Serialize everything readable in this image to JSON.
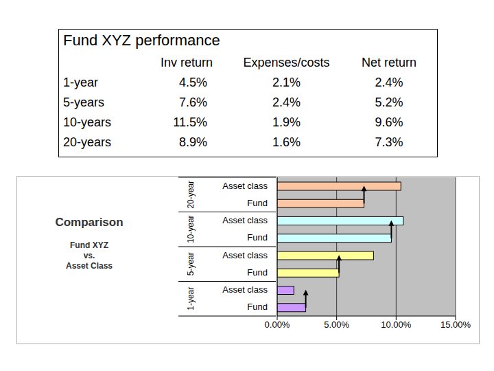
{
  "table": {
    "title": "Fund XYZ performance",
    "columns": [
      "Inv return",
      "Expenses/costs",
      "Net return"
    ],
    "rows": [
      {
        "label": "1-year",
        "cells": [
          "4.5%",
          "2.1%",
          "2.4%"
        ]
      },
      {
        "label": "5-years",
        "cells": [
          "7.6%",
          "2.4%",
          "5.2%"
        ]
      },
      {
        "label": "10-years",
        "cells": [
          "11.5%",
          "1.9%",
          "9.6%"
        ]
      },
      {
        "label": "20-years",
        "cells": [
          "8.9%",
          "1.6%",
          "7.3%"
        ]
      }
    ]
  },
  "chart_data": {
    "type": "bar",
    "orientation": "horizontal",
    "title": "Comparison",
    "subtitle": [
      "Fund XYZ",
      "vs.",
      "Asset Class"
    ],
    "groups": [
      "20-year",
      "10-year",
      "5-year",
      "1-year"
    ],
    "categories": [
      "Asset class",
      "Fund",
      "Asset class",
      "Fund",
      "Asset class",
      "Fund",
      "Asset class",
      "Fund"
    ],
    "values": [
      10.4,
      7.3,
      10.6,
      9.6,
      8.1,
      5.2,
      1.4,
      2.4
    ],
    "colors": [
      "#fbc6a4",
      "#fbc6a4",
      "#ccffff",
      "#ccffff",
      "#ffff99",
      "#ffff99",
      "#cc99ff",
      "#cc99ff"
    ],
    "xlim": [
      0,
      15
    ],
    "xticks": [
      {
        "value": 0,
        "label": "0.00%"
      },
      {
        "value": 5,
        "label": "5.00%"
      },
      {
        "value": 10,
        "label": "10.00%"
      },
      {
        "value": 15,
        "label": "15.00%"
      }
    ],
    "grid": true
  }
}
